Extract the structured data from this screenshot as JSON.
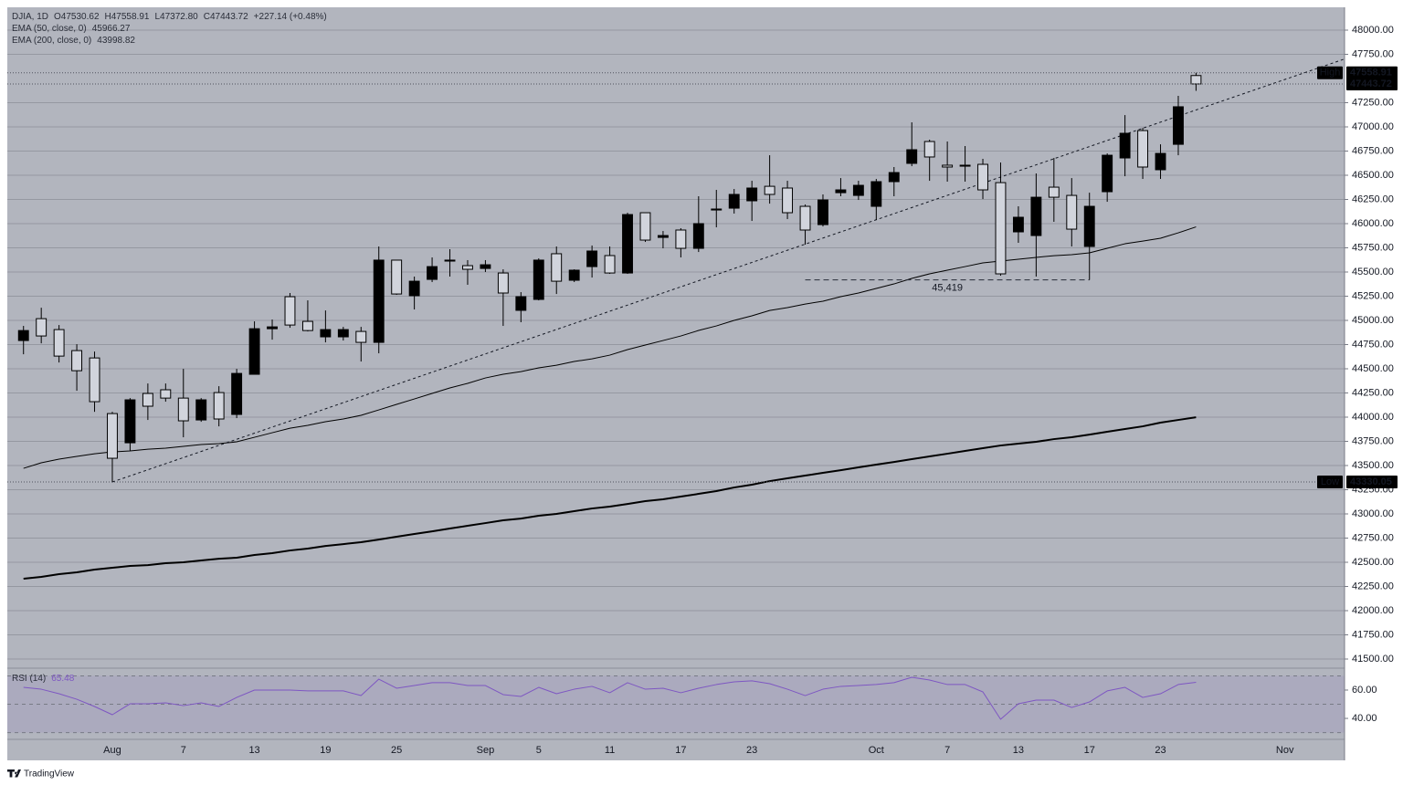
{
  "chart_data": {
    "type": "candlestick",
    "header": [
      "DJIA, 1D",
      "O47530.62",
      "H47558.91",
      "L47372.80",
      "C47443.72",
      "+227.14 (+0.48%)"
    ],
    "categories": [
      null,
      null,
      null,
      null,
      null,
      "Aug",
      null,
      null,
      null,
      "7",
      null,
      null,
      null,
      "13",
      null,
      null,
      null,
      "19",
      null,
      null,
      null,
      "25",
      null,
      null,
      null,
      null,
      "Sep",
      null,
      null,
      "5",
      null,
      null,
      null,
      "11",
      null,
      null,
      null,
      "17",
      null,
      null,
      null,
      "23",
      null,
      null,
      null,
      null,
      null,
      null,
      "Oct",
      null,
      null,
      null,
      "7",
      null,
      null,
      null,
      "13",
      null,
      null,
      null,
      "17",
      null,
      null,
      null,
      "23",
      null,
      null,
      null,
      null,
      null,
      null,
      "Nov"
    ],
    "open": [
      44792,
      45018,
      44905,
      44688,
      44612,
      44037,
      43735,
      44245,
      44283,
      44197,
      43971,
      44254,
      44028,
      44443,
      44914,
      45245,
      44990,
      44830,
      44830,
      44886,
      44773,
      45623,
      45255,
      45424,
      45613,
      45566,
      45537,
      45490,
      45104,
      45217,
      45689,
      45415,
      45556,
      45670,
      45490,
      46113,
      45858,
      45934,
      45745,
      46141,
      46160,
      46236,
      46386,
      46368,
      46179,
      45990,
      46320,
      46292,
      46179,
      46434,
      46623,
      46849,
      46604,
      46594,
      46613,
      46424,
      45915,
      45877,
      46377,
      46292,
      45764,
      46330,
      46679,
      46962,
      46557,
      46820,
      47530.62,
      null,
      null,
      null,
      null,
      null
    ],
    "high": [
      44943,
      45131,
      44952,
      44754,
      44678,
      44055,
      44197,
      44348,
      44348,
      44499,
      44197,
      44320,
      44499,
      44990,
      45009,
      45283,
      45207,
      45103,
      44933,
      44933,
      45764,
      45623,
      45453,
      45651,
      45736,
      45623,
      45623,
      45528,
      45292,
      45641,
      45764,
      45528,
      45774,
      45764,
      46113,
      46113,
      45924,
      45953,
      46283,
      46349,
      46358,
      46443,
      46707,
      46443,
      46198,
      46302,
      46471,
      46443,
      46462,
      46585,
      47047,
      46868,
      46849,
      46802,
      46670,
      46632,
      46179,
      46519,
      46679,
      46471,
      46320,
      46726,
      47122,
      46990,
      46820,
      47321,
      47558.91,
      null,
      null,
      null,
      null,
      null
    ],
    "low": [
      44650,
      44763,
      44565,
      44273,
      44055,
      43330.05,
      43651,
      43971,
      44160,
      43792,
      43952,
      43905,
      43990,
      44443,
      44801,
      44924,
      44886,
      44773,
      44792,
      44575,
      44660,
      45264,
      45113,
      45396,
      45453,
      45368,
      45500,
      44943,
      44981,
      45207,
      45273,
      45396,
      45443,
      45481,
      45481,
      45811,
      45745,
      45651,
      45707,
      45962,
      46104,
      46028,
      46207,
      46047,
      45783,
      45971,
      46283,
      46245,
      46038,
      46283,
      46594,
      46443,
      46434,
      46434,
      46254,
      45462,
      45802,
      45453,
      46019,
      45764,
      45419,
      46226,
      46490,
      46462,
      46462,
      46707,
      47372.8,
      null,
      null,
      null,
      null,
      null
    ],
    "close": [
      44895,
      44839,
      44631,
      44480,
      44160,
      43575,
      44179,
      44113,
      44197,
      43962,
      44179,
      43981,
      44452,
      44914,
      44933,
      44952,
      44895,
      44905,
      44905,
      44773,
      45623,
      45273,
      45405,
      45556,
      45623,
      45528,
      45575,
      45283,
      45245,
      45623,
      45405,
      45519,
      45717,
      45490,
      46094,
      45830,
      45877,
      45745,
      46000,
      46151,
      46302,
      46368,
      46302,
      46113,
      45934,
      46245,
      46349,
      46396,
      46434,
      46528,
      46764,
      46689,
      46585,
      46604,
      46349,
      45481,
      46066,
      46273,
      46273,
      45943,
      46179,
      46707,
      46934,
      46585,
      46726,
      47208,
      47443.72,
      null,
      null,
      null,
      null,
      null
    ],
    "up_color": "#000000",
    "down_color": "#d1d4dc",
    "outline_color": "#000000",
    "overlays": [
      {
        "name": "EMA (50, close, 0)",
        "color": "#000000",
        "width": 1,
        "values": [
          43471,
          43528,
          43566,
          43594,
          43622,
          43641,
          43651,
          43669,
          43679,
          43698,
          43717,
          43726,
          43745,
          43792,
          43839,
          43886,
          43915,
          43953,
          43981,
          44019,
          44075,
          44132,
          44188,
          44245,
          44302,
          44349,
          44405,
          44443,
          44471,
          44509,
          44537,
          44575,
          44603,
          44641,
          44698,
          44745,
          44792,
          44839,
          44896,
          44943,
          45000,
          45047,
          45103,
          45132,
          45169,
          45198,
          45245,
          45283,
          45330,
          45377,
          45434,
          45481,
          45519,
          45556,
          45594,
          45613,
          45632,
          45651,
          45669,
          45679,
          45698,
          45745,
          45792,
          45820,
          45849,
          45905,
          45966.27,
          null,
          null,
          null,
          null,
          null
        ]
      },
      {
        "name": "EMA (200, close, 0)",
        "color": "#000000",
        "width": 2,
        "values": [
          42330,
          42349,
          42377,
          42396,
          42424,
          42443,
          42462,
          42471,
          42490,
          42500,
          42519,
          42537,
          42547,
          42575,
          42594,
          42622,
          42641,
          42669,
          42688,
          42707,
          42735,
          42764,
          42792,
          42820,
          42849,
          42877,
          42905,
          42934,
          42952,
          42981,
          43000,
          43028,
          43056,
          43075,
          43103,
          43132,
          43151,
          43179,
          43207,
          43236,
          43273,
          43302,
          43339,
          43368,
          43396,
          43424,
          43452,
          43481,
          43509,
          43537,
          43566,
          43594,
          43622,
          43651,
          43679,
          43707,
          43726,
          43745,
          43773,
          43792,
          43820,
          43849,
          43877,
          43905,
          43943,
          43971,
          43998.82,
          null,
          null,
          null,
          null,
          null
        ]
      }
    ],
    "ylim": [
      41415,
      48236
    ],
    "yticks": [
      {
        "value": 48000,
        "label": "48000.00"
      },
      {
        "value": 47750,
        "label": "47750.00"
      },
      {
        "value": 47250,
        "label": "47250.00"
      },
      {
        "value": 47000,
        "label": "47000.00"
      },
      {
        "value": 46750,
        "label": "46750.00"
      },
      {
        "value": 46500,
        "label": "46500.00"
      },
      {
        "value": 46250,
        "label": "46250.00"
      },
      {
        "value": 46000,
        "label": "46000.00"
      },
      {
        "value": 45750,
        "label": "45750.00"
      },
      {
        "value": 45500,
        "label": "45500.00"
      },
      {
        "value": 45250,
        "label": "45250.00"
      },
      {
        "value": 45000,
        "label": "45000.00"
      },
      {
        "value": 44750,
        "label": "44750.00"
      },
      {
        "value": 44500,
        "label": "44500.00"
      },
      {
        "value": 44250,
        "label": "44250.00"
      },
      {
        "value": 44000,
        "label": "44000.00"
      },
      {
        "value": 43750,
        "label": "43750.00"
      },
      {
        "value": 43500,
        "label": "43500.00"
      },
      {
        "value": 43250,
        "label": "43250.00"
      },
      {
        "value": 43000,
        "label": "43000.00"
      },
      {
        "value": 42750,
        "label": "42750.00"
      },
      {
        "value": 42500,
        "label": "42500.00"
      },
      {
        "value": 42250,
        "label": "42250.00"
      },
      {
        "value": 42000,
        "label": "42000.00"
      },
      {
        "value": 41750,
        "label": "41750.00"
      },
      {
        "value": 41500,
        "label": "41500.00"
      }
    ],
    "grid": true,
    "high_label": "High",
    "low_label": "Low",
    "trendline": {
      "from": [
        5,
        43330.05
      ],
      "to": [
        71,
        47490
      ]
    },
    "support": {
      "value": 45419,
      "label": "45,419",
      "from": 44,
      "to": 60
    },
    "rsi": {
      "name": "RSI (14)",
      "color": "#7e57c2",
      "values": [
        61.9,
        60.6,
        57.4,
        53.5,
        48.4,
        42.6,
        50.3,
        50.3,
        51.0,
        49.0,
        51.0,
        48.4,
        54.8,
        60,
        60,
        60,
        59.4,
        59.4,
        59.4,
        56.1,
        67.7,
        61.3,
        63.2,
        65.2,
        65.2,
        63.2,
        63.2,
        56.8,
        55.5,
        61.9,
        57.4,
        60.6,
        62.6,
        58.1,
        65.2,
        60.6,
        61.3,
        58.1,
        61.3,
        63.9,
        65.8,
        66.5,
        64.5,
        60.6,
        56.1,
        60.6,
        62.6,
        63.2,
        63.9,
        65.2,
        69.0,
        67.1,
        63.9,
        63.9,
        58.7,
        39.4,
        50.3,
        52.9,
        52.9,
        47.7,
        51.6,
        59.4,
        61.9,
        54.8,
        57.4,
        63.9,
        65.48,
        null,
        null,
        null,
        null,
        null
      ],
      "ylim": [
        26.5,
        74.8
      ],
      "yticks": [
        {
          "value": 60,
          "label": "60.00"
        },
        {
          "value": 40,
          "label": "40.00"
        }
      ],
      "bands": [
        70,
        50,
        30
      ]
    },
    "footer": "TradingView"
  }
}
